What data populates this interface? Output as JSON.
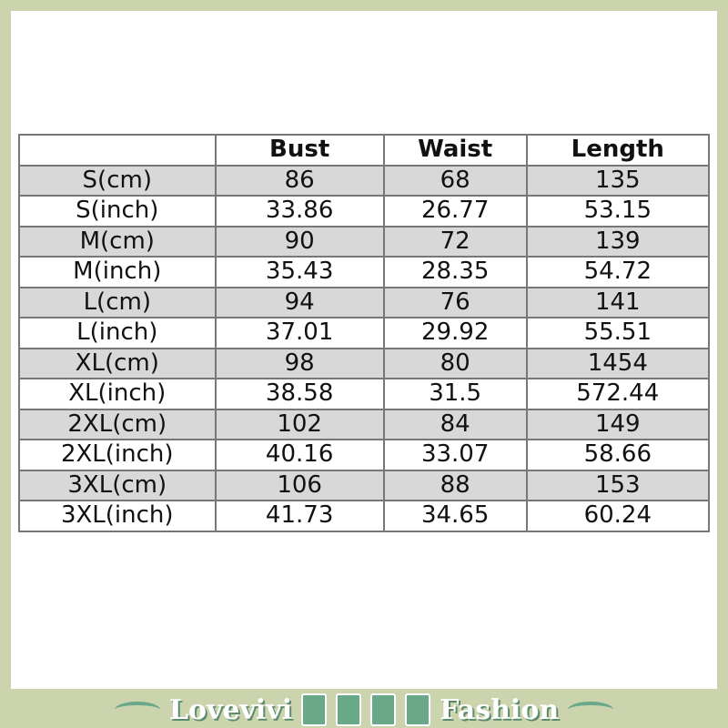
{
  "table": {
    "headers": [
      "",
      "Bust",
      "Waist",
      "Length"
    ],
    "rows": [
      [
        "S(cm)",
        "86",
        "68",
        "135"
      ],
      [
        "S(inch)",
        "33.86",
        "26.77",
        "53.15"
      ],
      [
        "M(cm)",
        "90",
        "72",
        "139"
      ],
      [
        "M(inch)",
        "35.43",
        "28.35",
        "54.72"
      ],
      [
        "L(cm)",
        "94",
        "76",
        "141"
      ],
      [
        "L(inch)",
        "37.01",
        "29.92",
        "55.51"
      ],
      [
        "XL(cm)",
        "98",
        "80",
        "1454"
      ],
      [
        "XL(inch)",
        "38.58",
        "31.5",
        "572.44"
      ],
      [
        "2XL(cm)",
        "102",
        "84",
        "149"
      ],
      [
        "2XL(inch)",
        "40.16",
        "33.07",
        "58.66"
      ],
      [
        "3XL(cm)",
        "106",
        "88",
        "153"
      ],
      [
        "3XL(inch)",
        "41.73",
        "34.65",
        "60.24"
      ]
    ]
  },
  "footer": {
    "brand_left": "Lovevivi",
    "brand_right": "Fashion"
  }
}
